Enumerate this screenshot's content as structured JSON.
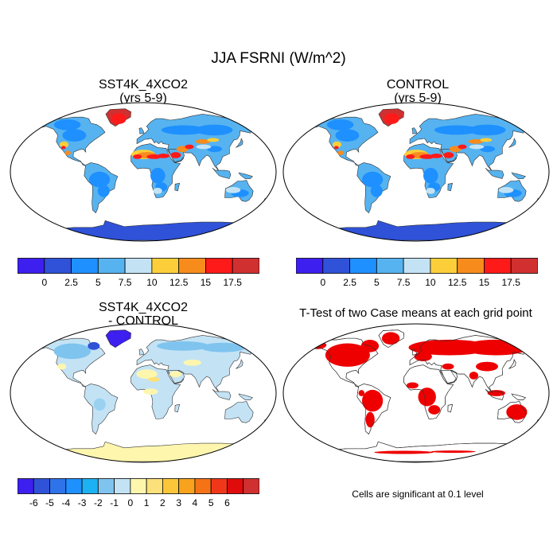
{
  "figure": {
    "title": "JJA FSRNI (W/m^2)",
    "footnote": "Cells are significant at 0.1 level"
  },
  "panels": [
    {
      "id": "case",
      "title_line1": "SST4K_4XCO2",
      "title_line2": "(yrs 5-9)",
      "kind": "flux"
    },
    {
      "id": "control",
      "title_line1": "CONTROL",
      "title_line2": "(yrs 5-9)",
      "kind": "flux"
    },
    {
      "id": "diff",
      "title_line1": "SST4K_4XCO2",
      "title_line2": "- CONTROL",
      "kind": "diff"
    },
    {
      "id": "ttest",
      "title_line1": "T-Test of two Case means at each grid point",
      "title_line2": "",
      "kind": "ttest"
    }
  ],
  "colorbars": {
    "flux": {
      "colors": [
        "#3d1ff0",
        "#2f52d8",
        "#1e90ff",
        "#56b3f0",
        "#c3e3f5",
        "#fccf3a",
        "#f78c1d",
        "#ff1a1a",
        "#d03030"
      ],
      "labels": [
        "0",
        "2.5",
        "5",
        "7.5",
        "10",
        "12.5",
        "15",
        "17.5"
      ]
    },
    "diff": {
      "colors": [
        "#3d1ff0",
        "#2f52d8",
        "#2f73ea",
        "#1e90ff",
        "#1cb1f2",
        "#7fc4ef",
        "#c3e3f5",
        "#fff6ae",
        "#fce07a",
        "#fcc63a",
        "#f9a21d",
        "#f57316",
        "#f0371a",
        "#e00c0c",
        "#d03030"
      ],
      "labels": [
        "-6",
        "-5",
        "-4",
        "-3",
        "-2",
        "-1",
        "0",
        "1",
        "2",
        "3",
        "4",
        "5",
        "6"
      ]
    }
  },
  "map_colors": {
    "ocean": "#ffffff",
    "flux_land": "#56b3f0",
    "flux_low": "#1e90ff",
    "flux_antarctica": "#2f52d8",
    "flux_greenland": "#d03030",
    "flux_desert_hot": "#ff1a1a",
    "flux_desert_warm": "#f78c1d",
    "flux_desert_mild": "#fccf3a",
    "flux_tibet": "#c3e3f5",
    "diff_land": "#c3e3f5",
    "diff_neg": "#7fc4ef",
    "diff_strong_neg": "#2f52d8",
    "diff_greenland": "#3d1ff0",
    "diff_pos": "#fff6ae",
    "diff_warm": "#fce07a",
    "diff_antarctica": "#fff6ae",
    "ttest_sig": "#ee0000"
  }
}
